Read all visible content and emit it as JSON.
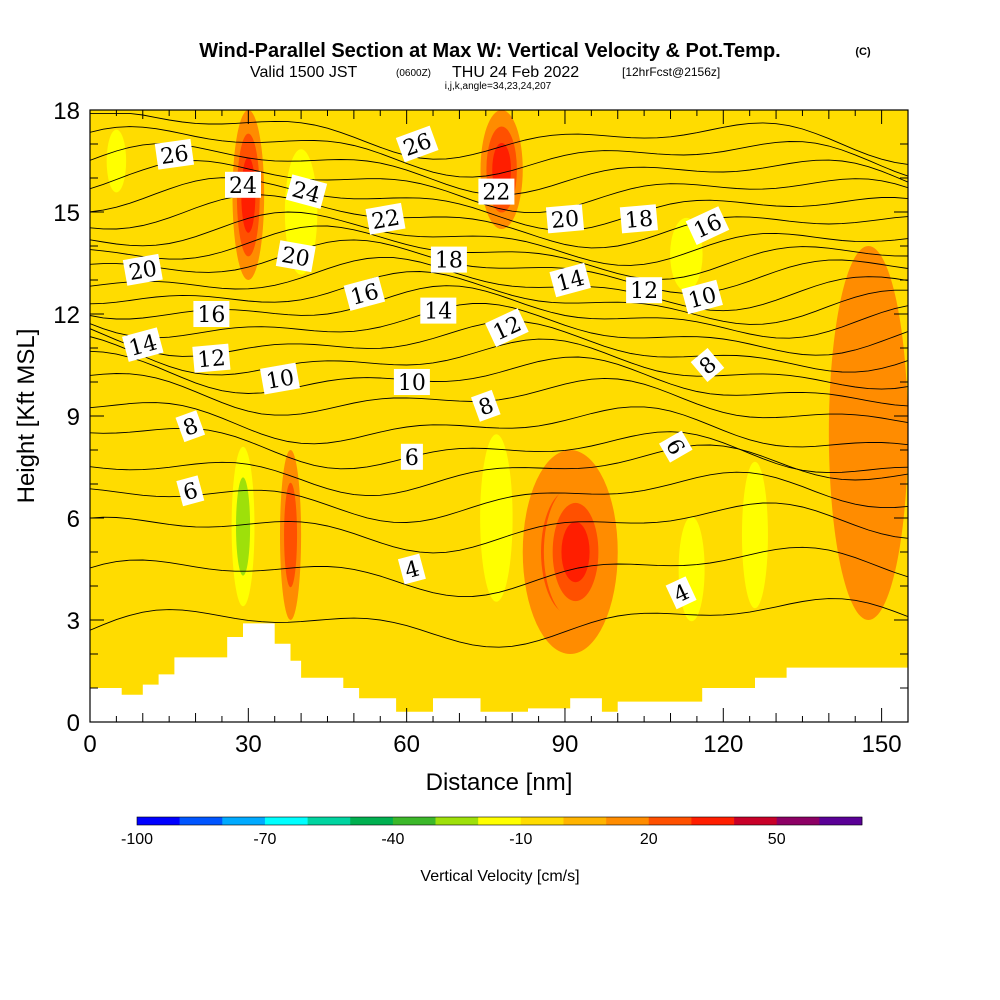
{
  "header": {
    "title": "Wind-Parallel Section at Max W: Vertical Velocity & Pot.Temp.",
    "title_mark": "(C)",
    "subtitle_a": "Valid 1500 JST",
    "subtitle_b": "(0600Z)",
    "subtitle_c": "THU 24 Feb 2022",
    "subtitle_d": "[12hrFcst@2156z]",
    "subtitle_e": "i,j,k,angle=34,23,24,207"
  },
  "chart_data": {
    "type": "heatmap",
    "xlabel": "Distance [nm]",
    "ylabel": "Height [Kft MSL]",
    "xlim": [
      0,
      155
    ],
    "ylim": [
      0,
      18
    ],
    "x_ticks": [
      "0",
      "30",
      "60",
      "90",
      "120",
      "150"
    ],
    "y_ticks": [
      "0",
      "3",
      "6",
      "9",
      "12",
      "15",
      "18"
    ],
    "fill_variable": "Vertical Velocity [cm/s]",
    "contour_variable": "Potential temperature (labels)",
    "colorbar": {
      "label": "Vertical Velocity [cm/s]",
      "tick_labels": [
        "-100",
        "-70",
        "-40",
        "-10",
        "20",
        "50"
      ],
      "tick_values": [
        -100,
        -70,
        -40,
        -10,
        20,
        50
      ],
      "range": [
        -100,
        70
      ],
      "step": 10,
      "colors": [
        "#0000ff",
        "#0055ff",
        "#00aaff",
        "#00ffff",
        "#00d4a0",
        "#00b050",
        "#3cb82a",
        "#9ee00a",
        "#ffff00",
        "#ffdc00",
        "#ffb400",
        "#ff8c00",
        "#ff5000",
        "#ff1e00",
        "#c80028",
        "#8c0064",
        "#5a0096"
      ]
    },
    "background_color": "#ffdc00",
    "updraft_regions": [
      {
        "name": "updraft-lower-center",
        "x": [
          82,
          100
        ],
        "y": [
          2,
          8
        ],
        "level": 20
      },
      {
        "name": "updraft-lower-center-core",
        "x": [
          86,
          98
        ],
        "y": [
          3,
          7
        ],
        "level": 30
      },
      {
        "name": "updraft-upper-left",
        "x": [
          27,
          33
        ],
        "y": [
          13,
          18
        ],
        "level": 30
      },
      {
        "name": "updraft-upper-center",
        "x": [
          74,
          82
        ],
        "y": [
          14.5,
          18
        ],
        "level": 30
      },
      {
        "name": "updraft-mid-left",
        "x": [
          36,
          40
        ],
        "y": [
          3,
          8
        ],
        "level": 20
      },
      {
        "name": "updraft-right",
        "x": [
          140,
          155
        ],
        "y": [
          3,
          14
        ],
        "level": 10
      }
    ],
    "downdraft_regions": [
      {
        "name": "downdraft-left-low",
        "x": [
          26,
          32
        ],
        "y": [
          2.5,
          9
        ],
        "level": -30
      },
      {
        "name": "downdraft-left-upper",
        "x": [
          35,
          45
        ],
        "y": [
          12,
          18
        ],
        "level": -20
      },
      {
        "name": "downdraft-center",
        "x": [
          72,
          82
        ],
        "y": [
          2,
          10
        ],
        "level": -20
      },
      {
        "name": "downdraft-right-mid",
        "x": [
          110,
          118
        ],
        "y": [
          2,
          7
        ],
        "level": -20
      },
      {
        "name": "downdraft-right",
        "x": [
          122,
          130
        ],
        "y": [
          2,
          9
        ],
        "level": -20
      },
      {
        "name": "downdraft-right-upper",
        "x": [
          108,
          118
        ],
        "y": [
          12,
          15.5
        ],
        "level": -20
      },
      {
        "name": "downdraft-left-top",
        "x": [
          2,
          8
        ],
        "y": [
          15,
          18
        ],
        "level": -20
      }
    ],
    "contour_labels": [
      {
        "text": "26",
        "x": 16,
        "y": 16.7,
        "rot": -8
      },
      {
        "text": "24",
        "x": 29,
        "y": 15.8,
        "rot": 0
      },
      {
        "text": "24",
        "x": 41,
        "y": 15.6,
        "rot": 15
      },
      {
        "text": "26",
        "x": 62,
        "y": 17,
        "rot": -20
      },
      {
        "text": "22",
        "x": 56,
        "y": 14.8,
        "rot": -10
      },
      {
        "text": "22",
        "x": 77,
        "y": 15.6,
        "rot": 0
      },
      {
        "text": "20",
        "x": 90,
        "y": 14.8,
        "rot": -5
      },
      {
        "text": "18",
        "x": 104,
        "y": 14.8,
        "rot": -5
      },
      {
        "text": "16",
        "x": 117,
        "y": 14.6,
        "rot": -25
      },
      {
        "text": "20",
        "x": 10,
        "y": 13.3,
        "rot": -10
      },
      {
        "text": "20",
        "x": 39,
        "y": 13.7,
        "rot": 10
      },
      {
        "text": "18",
        "x": 68,
        "y": 13.6,
        "rot": 0
      },
      {
        "text": "16",
        "x": 23,
        "y": 12,
        "rot": 0
      },
      {
        "text": "16",
        "x": 52,
        "y": 12.6,
        "rot": -15
      },
      {
        "text": "14",
        "x": 66,
        "y": 12.1,
        "rot": 0
      },
      {
        "text": "14",
        "x": 91,
        "y": 13,
        "rot": -15
      },
      {
        "text": "12",
        "x": 105,
        "y": 12.7,
        "rot": 0
      },
      {
        "text": "10",
        "x": 116,
        "y": 12.5,
        "rot": -15
      },
      {
        "text": "14",
        "x": 10,
        "y": 11.1,
        "rot": -15
      },
      {
        "text": "12",
        "x": 23,
        "y": 10.7,
        "rot": -5
      },
      {
        "text": "12",
        "x": 79,
        "y": 11.6,
        "rot": -25
      },
      {
        "text": "10",
        "x": 36,
        "y": 10.1,
        "rot": -10
      },
      {
        "text": "10",
        "x": 61,
        "y": 10,
        "rot": 0
      },
      {
        "text": "8",
        "x": 117,
        "y": 10.5,
        "rot": -40
      },
      {
        "text": "8",
        "x": 19,
        "y": 8.7,
        "rot": -20
      },
      {
        "text": "8",
        "x": 75,
        "y": 9.3,
        "rot": -20
      },
      {
        "text": "6",
        "x": 61,
        "y": 7.8,
        "rot": 0
      },
      {
        "text": "6",
        "x": 111,
        "y": 8.1,
        "rot": 60
      },
      {
        "text": "6",
        "x": 19,
        "y": 6.8,
        "rot": -15
      },
      {
        "text": "4",
        "x": 61,
        "y": 4.5,
        "rot": -15
      },
      {
        "text": "4",
        "x": 112,
        "y": 3.8,
        "rot": -25
      }
    ],
    "contour_levels_y_at_left": [
      2.7,
      4.2,
      5.5,
      6.4,
      7.2,
      8.3,
      9.0,
      9.8,
      10.4,
      10.9,
      11.4,
      11.9,
      12.4,
      12.8,
      13.2,
      13.7,
      14.1,
      14.5,
      15.0,
      15.5,
      16.0,
      16.5,
      17.0,
      17.5
    ]
  }
}
